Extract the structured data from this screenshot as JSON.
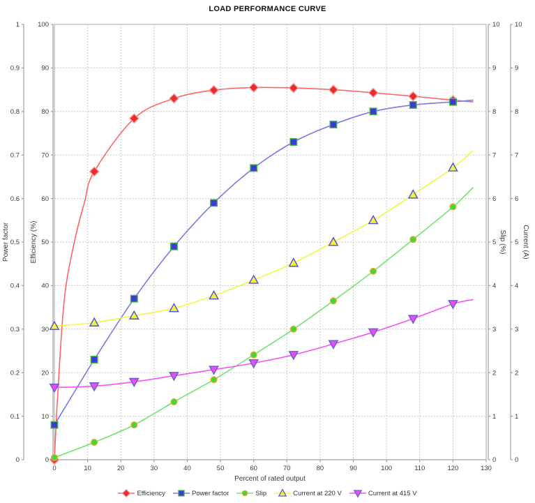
{
  "title": "LOAD PERFORMANCE CURVE",
  "axes": {
    "x": {
      "label": "Percent of rated output",
      "min": 0,
      "max": 130,
      "step": 10
    },
    "power_factor": {
      "label": "Power factor",
      "min": 0,
      "max": 1,
      "step": 0.1
    },
    "efficiency": {
      "label": "Efficiency (%)",
      "min": 0,
      "max": 100,
      "step": 10
    },
    "slip": {
      "label": "Slip (%)",
      "min": 0,
      "max": 10,
      "step": 1
    },
    "current": {
      "label": "Current (A)",
      "min": 0,
      "max": 10,
      "step": 1
    }
  },
  "chart_data": {
    "type": "line",
    "title": "LOAD PERFORMANCE CURVE",
    "xlabel": "Percent of rated output",
    "x_range": [
      0,
      130
    ],
    "grid": true,
    "legend_position": "bottom",
    "x": [
      0,
      12,
      24,
      36,
      48,
      60,
      72,
      84,
      96,
      108,
      120
    ],
    "series": [
      {
        "name": "Efficiency",
        "yaxis": "Efficiency (%)",
        "axis_max": 100,
        "marker": "diamond",
        "line_color": "#ff6464",
        "marker_fill": "#e62e2e",
        "marker_edge": "#ff9696",
        "values": [
          0,
          66.2,
          78.4,
          83.0,
          84.9,
          85.5,
          85.4,
          85.0,
          84.3,
          83.5,
          82.6
        ],
        "curve_helpers": [
          [
            1,
            15
          ],
          [
            3,
            37
          ],
          [
            6,
            50
          ],
          [
            9,
            59
          ]
        ],
        "trend_end": {
          "x": 126,
          "value": 82.2
        }
      },
      {
        "name": "Power factor",
        "yaxis": "Power factor",
        "axis_max": 1,
        "marker": "square",
        "line_color": "#7878ea",
        "marker_fill": "#3c3cd2",
        "marker_edge": "#46b846",
        "values": [
          0.08,
          0.23,
          0.37,
          0.49,
          0.59,
          0.67,
          0.73,
          0.77,
          0.8,
          0.815,
          0.822
        ],
        "curve_helpers": [],
        "trend_end": {
          "x": 126,
          "value": 0.826
        }
      },
      {
        "name": "Slip",
        "yaxis": "Slip (%)",
        "axis_max": 10,
        "marker": "circle",
        "line_color": "#6ee66e",
        "marker_fill": "#3cd83c",
        "marker_edge": "#f0aa32",
        "values": [
          0.05,
          0.4,
          0.8,
          1.33,
          1.84,
          2.41,
          3.0,
          3.65,
          4.33,
          5.06,
          5.81
        ],
        "curve_helpers": [],
        "trend_end": {
          "x": 126,
          "value": 6.25
        }
      },
      {
        "name": "Current at 220 V",
        "yaxis": "Current (A)",
        "axis_max": 10,
        "marker": "triangle-up",
        "line_color": "#f5f546",
        "marker_fill": "#f2f23c",
        "marker_edge": "#5050d8",
        "values": [
          3.07,
          3.15,
          3.31,
          3.48,
          3.77,
          4.13,
          4.52,
          5.0,
          5.5,
          6.09,
          6.71
        ],
        "curve_helpers": [],
        "trend_end": {
          "x": 126,
          "value": 7.1
        }
      },
      {
        "name": "Current at 415 V",
        "yaxis": "Current (A)",
        "axis_max": 10,
        "marker": "triangle-down",
        "line_color": "#fa50fa",
        "marker_fill": "#e94fe9",
        "marker_edge": "#5f5fd8",
        "values": [
          1.66,
          1.69,
          1.79,
          1.93,
          2.07,
          2.22,
          2.41,
          2.66,
          2.93,
          3.24,
          3.58
        ],
        "curve_helpers": [],
        "trend_end": {
          "x": 126,
          "value": 3.68
        }
      }
    ]
  },
  "style": {
    "grid_color": "#c8c8c8",
    "axis_color": "#8c8c8c",
    "border_color": "#a6a6a6",
    "tick_text_color": "#3a3a3a"
  }
}
